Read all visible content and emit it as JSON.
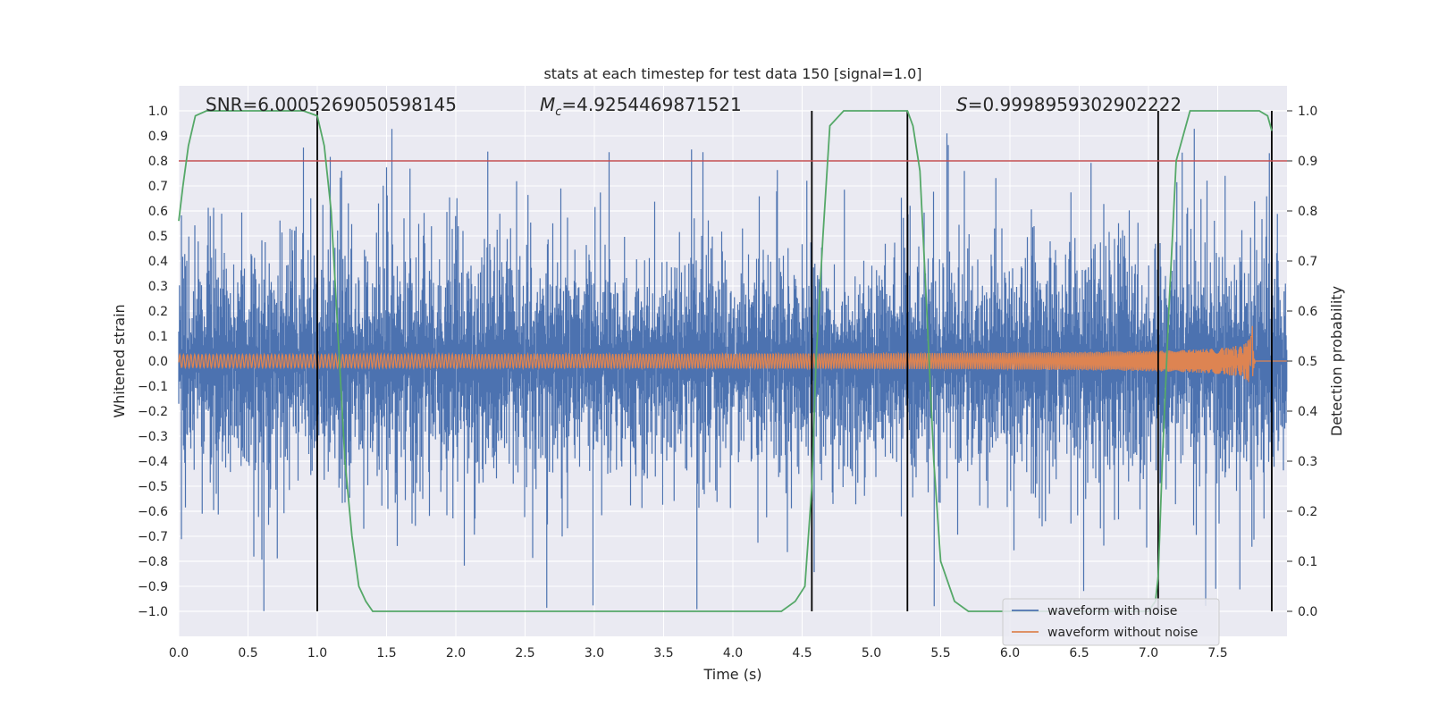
{
  "chart_data": {
    "type": "line",
    "title": "stats at each timestep for test data 150 [signal=1.0]",
    "xlabel": "Time (s)",
    "ylabel": "Whitened strain",
    "y2label": "Detection probability",
    "xlim": [
      0.0,
      8.0
    ],
    "ylim": [
      -1.1,
      1.1
    ],
    "y2lim": [
      -0.05,
      1.05
    ],
    "xticks": [
      "0.0",
      "0.5",
      "1.0",
      "1.5",
      "2.0",
      "2.5",
      "3.0",
      "3.5",
      "4.0",
      "4.5",
      "5.0",
      "5.5",
      "6.0",
      "6.5",
      "7.0",
      "7.5"
    ],
    "yticks": [
      "1.0",
      "0.9",
      "0.8",
      "0.7",
      "0.6",
      "0.5",
      "0.4",
      "0.3",
      "0.2",
      "0.1",
      "0.0",
      "−0.1",
      "−0.2",
      "−0.3",
      "−0.4",
      "−0.5",
      "−0.6",
      "−0.7",
      "−0.8",
      "−0.9",
      "−1.0"
    ],
    "y2ticks": [
      "1.0",
      "0.9",
      "0.8",
      "0.7",
      "0.6",
      "0.5",
      "0.4",
      "0.3",
      "0.2",
      "0.1",
      "0.0"
    ],
    "annotations": {
      "snr": "SNR=6.0005269050598145",
      "mc_symbol": "M",
      "mc_sub": "c",
      "mc_value": "=4.9254469871521",
      "s_symbol": "S",
      "s_value": "=0.9998959302902222"
    },
    "threshold_line": {
      "axis": "y2",
      "value": 0.9,
      "color": "#c44e52"
    },
    "vertical_lines": [
      1.0,
      4.57,
      5.26,
      7.07,
      7.89
    ],
    "series": [
      {
        "name": "waveform with noise",
        "color": "#4c72b0",
        "kind": "noise",
        "typical_amplitude": 0.42,
        "max_positive": 0.93,
        "max_negative": -1.0
      },
      {
        "name": "waveform without noise",
        "color": "#dd8452",
        "kind": "chirp",
        "start_amplitude": 0.01,
        "peak_amplitude": 0.14,
        "merger_time": 7.75
      },
      {
        "name": "Detection probability",
        "color": "#55a868",
        "axis": "y2",
        "x": [
          0.0,
          0.03,
          0.07,
          0.12,
          0.2,
          0.3,
          0.5,
          0.7,
          0.9,
          1.0,
          1.05,
          1.1,
          1.15,
          1.2,
          1.25,
          1.3,
          1.35,
          1.4,
          1.6,
          2.0,
          3.0,
          4.0,
          4.2,
          4.35,
          4.45,
          4.52,
          4.57,
          4.6,
          4.65,
          4.7,
          4.8,
          5.0,
          5.2,
          5.26,
          5.3,
          5.35,
          5.4,
          5.45,
          5.5,
          5.6,
          5.7,
          6.0,
          6.5,
          7.0,
          7.05,
          7.07,
          7.1,
          7.15,
          7.2,
          7.3,
          7.5,
          7.7,
          7.8,
          7.86,
          7.89
        ],
        "y": [
          0.78,
          0.85,
          0.93,
          0.99,
          1.0,
          1.0,
          1.0,
          1.0,
          1.0,
          0.99,
          0.93,
          0.8,
          0.55,
          0.3,
          0.15,
          0.05,
          0.02,
          0.0,
          0.0,
          0.0,
          0.0,
          0.0,
          0.0,
          0.0,
          0.02,
          0.05,
          0.25,
          0.5,
          0.75,
          0.97,
          1.0,
          1.0,
          1.0,
          1.0,
          0.97,
          0.88,
          0.6,
          0.3,
          0.1,
          0.02,
          0.0,
          0.0,
          0.0,
          0.0,
          0.02,
          0.07,
          0.3,
          0.62,
          0.9,
          1.0,
          1.0,
          1.0,
          1.0,
          0.99,
          0.96
        ]
      }
    ],
    "legend": {
      "placement": "bottom-right",
      "entries": [
        "waveform with noise",
        "waveform without noise"
      ]
    }
  }
}
